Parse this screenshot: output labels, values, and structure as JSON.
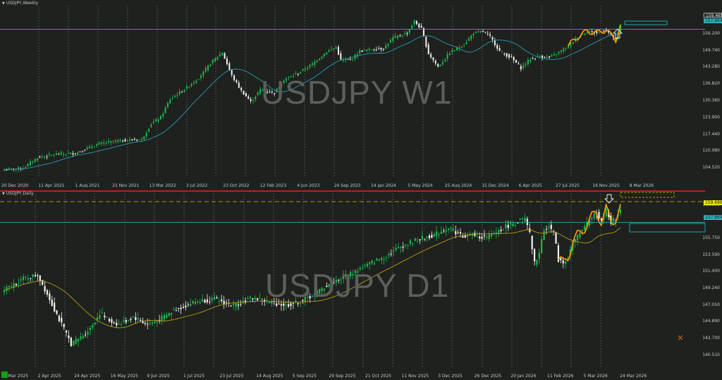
{
  "colors": {
    "background": "#1e211e",
    "grid": "#6a6d6a",
    "bull_candle": "#1fb84e",
    "bear_candle": "#f2f2f2",
    "ma_weekly": "#2a9bb5",
    "ma_daily": "#b89b18",
    "swing_line": "#ff9d00",
    "level_line": "#2ab0b8",
    "dashed_level": "#d8c400",
    "resistance_red": "#d02020"
  },
  "weekly": {
    "title": "USDJPY,Weekly",
    "watermark": "USDJPY W1",
    "price_ticks": [
      "162.660",
      "156.200",
      "149.740",
      "143.280",
      "136.820",
      "130.360",
      "123.900",
      "117.440",
      "110.980",
      "104.520"
    ],
    "current_price": "159.465",
    "level_price": "157.864",
    "date_ticks": [
      "20 Dec 2020",
      "11 Apr 2021",
      "1 Aug 2021",
      "21 Nov 2021",
      "13 Mar 2022",
      "3 Jul 2022",
      "23 Oct 2022",
      "12 Feb 2023",
      "4 Jun 2023",
      "24 Sep 2023",
      "14 Jan 2024",
      "5 May 2024",
      "25 Aug 2024",
      "15 Dec 2024",
      "6 Apr 2025",
      "27 Jul 2025",
      "16 Nov 2025",
      "8 Mar 2026"
    ]
  },
  "daily": {
    "title": "USDJPY,Daily",
    "watermark": "USDJPY D1",
    "price_ticks": [
      "160.100",
      "155.750",
      "153.590",
      "151.400",
      "149.240",
      "147.050",
      "144.890",
      "142.700",
      "140.510"
    ],
    "current_price": "159.696",
    "level_price": "157.864",
    "date_ticks": [
      "13 Mar 2025",
      "2 Apr 2025",
      "24 Apr 2025",
      "16 May 2025",
      "9 Jun 2025",
      "1 Jul 2025",
      "23 Jul 2025",
      "14 Aug 2025",
      "5 Sep 2025",
      "29 Sep 2025",
      "21 Oct 2025",
      "11 Nov 2025",
      "3 Dec 2025",
      "26 Dec 2025",
      "20 Jan 2026",
      "11 Feb 2026",
      "5 Mar 2026",
      "24 Mar 2026"
    ]
  },
  "chart_data": [
    {
      "type": "candlestick",
      "title": "USDJPY,Weekly",
      "ylim": [
        101.3,
        165.9
      ],
      "price_ticks": [
        162.66,
        156.2,
        149.74,
        143.28,
        136.82,
        130.36,
        123.9,
        117.44,
        110.98,
        104.52
      ],
      "level": 157.864,
      "last": 159.465,
      "moving_average": true,
      "anchors": [
        [
          0,
          103.8
        ],
        [
          8,
          104.5
        ],
        [
          14,
          108.5
        ],
        [
          22,
          109.8
        ],
        [
          30,
          110.2
        ],
        [
          40,
          113.8
        ],
        [
          48,
          115.0
        ],
        [
          58,
          115.5
        ],
        [
          62,
          121.5
        ],
        [
          66,
          124.0
        ],
        [
          70,
          131.0
        ],
        [
          76,
          134.8
        ],
        [
          82,
          139.2
        ],
        [
          88,
          145.8
        ],
        [
          92,
          149.0
        ],
        [
          96,
          140.0
        ],
        [
          100,
          134.2
        ],
        [
          104,
          130.0
        ],
        [
          108,
          134.5
        ],
        [
          114,
          133.5
        ],
        [
          118,
          138.5
        ],
        [
          124,
          141.0
        ],
        [
          130,
          144.5
        ],
        [
          136,
          149.3
        ],
        [
          140,
          151.0
        ],
        [
          142,
          146.0
        ],
        [
          146,
          146.0
        ],
        [
          150,
          149.5
        ],
        [
          156,
          150.3
        ],
        [
          160,
          150.5
        ],
        [
          164,
          154.5
        ],
        [
          170,
          156.5
        ],
        [
          173,
          161.0
        ],
        [
          176,
          158.0
        ],
        [
          179,
          148.5
        ],
        [
          183,
          143.5
        ],
        [
          186,
          146.5
        ],
        [
          188,
          149.0
        ],
        [
          194,
          152.0
        ],
        [
          198,
          156.5
        ],
        [
          202,
          157.0
        ],
        [
          205,
          155.0
        ],
        [
          209,
          149.5
        ],
        [
          214,
          146.8
        ],
        [
          218,
          143.0
        ],
        [
          222,
          146.5
        ],
        [
          226,
          147.5
        ],
        [
          230,
          147.0
        ],
        [
          234,
          149.0
        ],
        [
          238,
          151.5
        ],
        [
          242,
          155.0
        ],
        [
          246,
          157.2
        ],
        [
          250,
          156.5
        ],
        [
          254,
          157.8
        ],
        [
          256,
          155.5
        ],
        [
          258,
          153.8
        ],
        [
          260,
          159.5
        ]
      ]
    },
    {
      "type": "candlestick",
      "title": "USDJPY,Daily",
      "ylim": [
        139.0,
        161.3
      ],
      "price_ticks": [
        160.1,
        155.75,
        153.59,
        151.4,
        149.24,
        147.05,
        144.89,
        142.7,
        140.51
      ],
      "level": 157.864,
      "last": 159.696,
      "moving_average": true,
      "anchors": [
        [
          0,
          149.0
        ],
        [
          8,
          150.5
        ],
        [
          14,
          151.0
        ],
        [
          18,
          148.5
        ],
        [
          24,
          144.5
        ],
        [
          28,
          142.0
        ],
        [
          32,
          142.8
        ],
        [
          36,
          144.0
        ],
        [
          40,
          146.0
        ],
        [
          44,
          145.0
        ],
        [
          48,
          144.5
        ],
        [
          54,
          145.5
        ],
        [
          60,
          144.5
        ],
        [
          66,
          145.3
        ],
        [
          72,
          146.5
        ],
        [
          80,
          147.5
        ],
        [
          88,
          147.8
        ],
        [
          96,
          147.0
        ],
        [
          104,
          148.0
        ],
        [
          110,
          147.5
        ],
        [
          118,
          147.0
        ],
        [
          124,
          147.5
        ],
        [
          130,
          148.5
        ],
        [
          136,
          149.8
        ],
        [
          144,
          151.0
        ],
        [
          152,
          152.3
        ],
        [
          160,
          153.5
        ],
        [
          166,
          154.7
        ],
        [
          172,
          155.5
        ],
        [
          180,
          156.2
        ],
        [
          186,
          157.2
        ],
        [
          192,
          156.0
        ],
        [
          196,
          156.3
        ],
        [
          202,
          155.8
        ],
        [
          206,
          156.6
        ],
        [
          210,
          157.3
        ],
        [
          214,
          157.8
        ],
        [
          218,
          158.3
        ],
        [
          220,
          156.3
        ],
        [
          222,
          152.5
        ],
        [
          224,
          153.8
        ],
        [
          226,
          157.0
        ],
        [
          228,
          157.4
        ],
        [
          230,
          156.5
        ],
        [
          232,
          153.0
        ],
        [
          234,
          152.5
        ],
        [
          236,
          153.4
        ],
        [
          238,
          155.2
        ],
        [
          240,
          156.1
        ],
        [
          242,
          156.8
        ],
        [
          244,
          157.6
        ],
        [
          246,
          158.5
        ],
        [
          248,
          159.2
        ],
        [
          250,
          158.0
        ],
        [
          252,
          159.5
        ],
        [
          254,
          157.9
        ],
        [
          256,
          158.4
        ],
        [
          258,
          159.7
        ]
      ]
    }
  ]
}
